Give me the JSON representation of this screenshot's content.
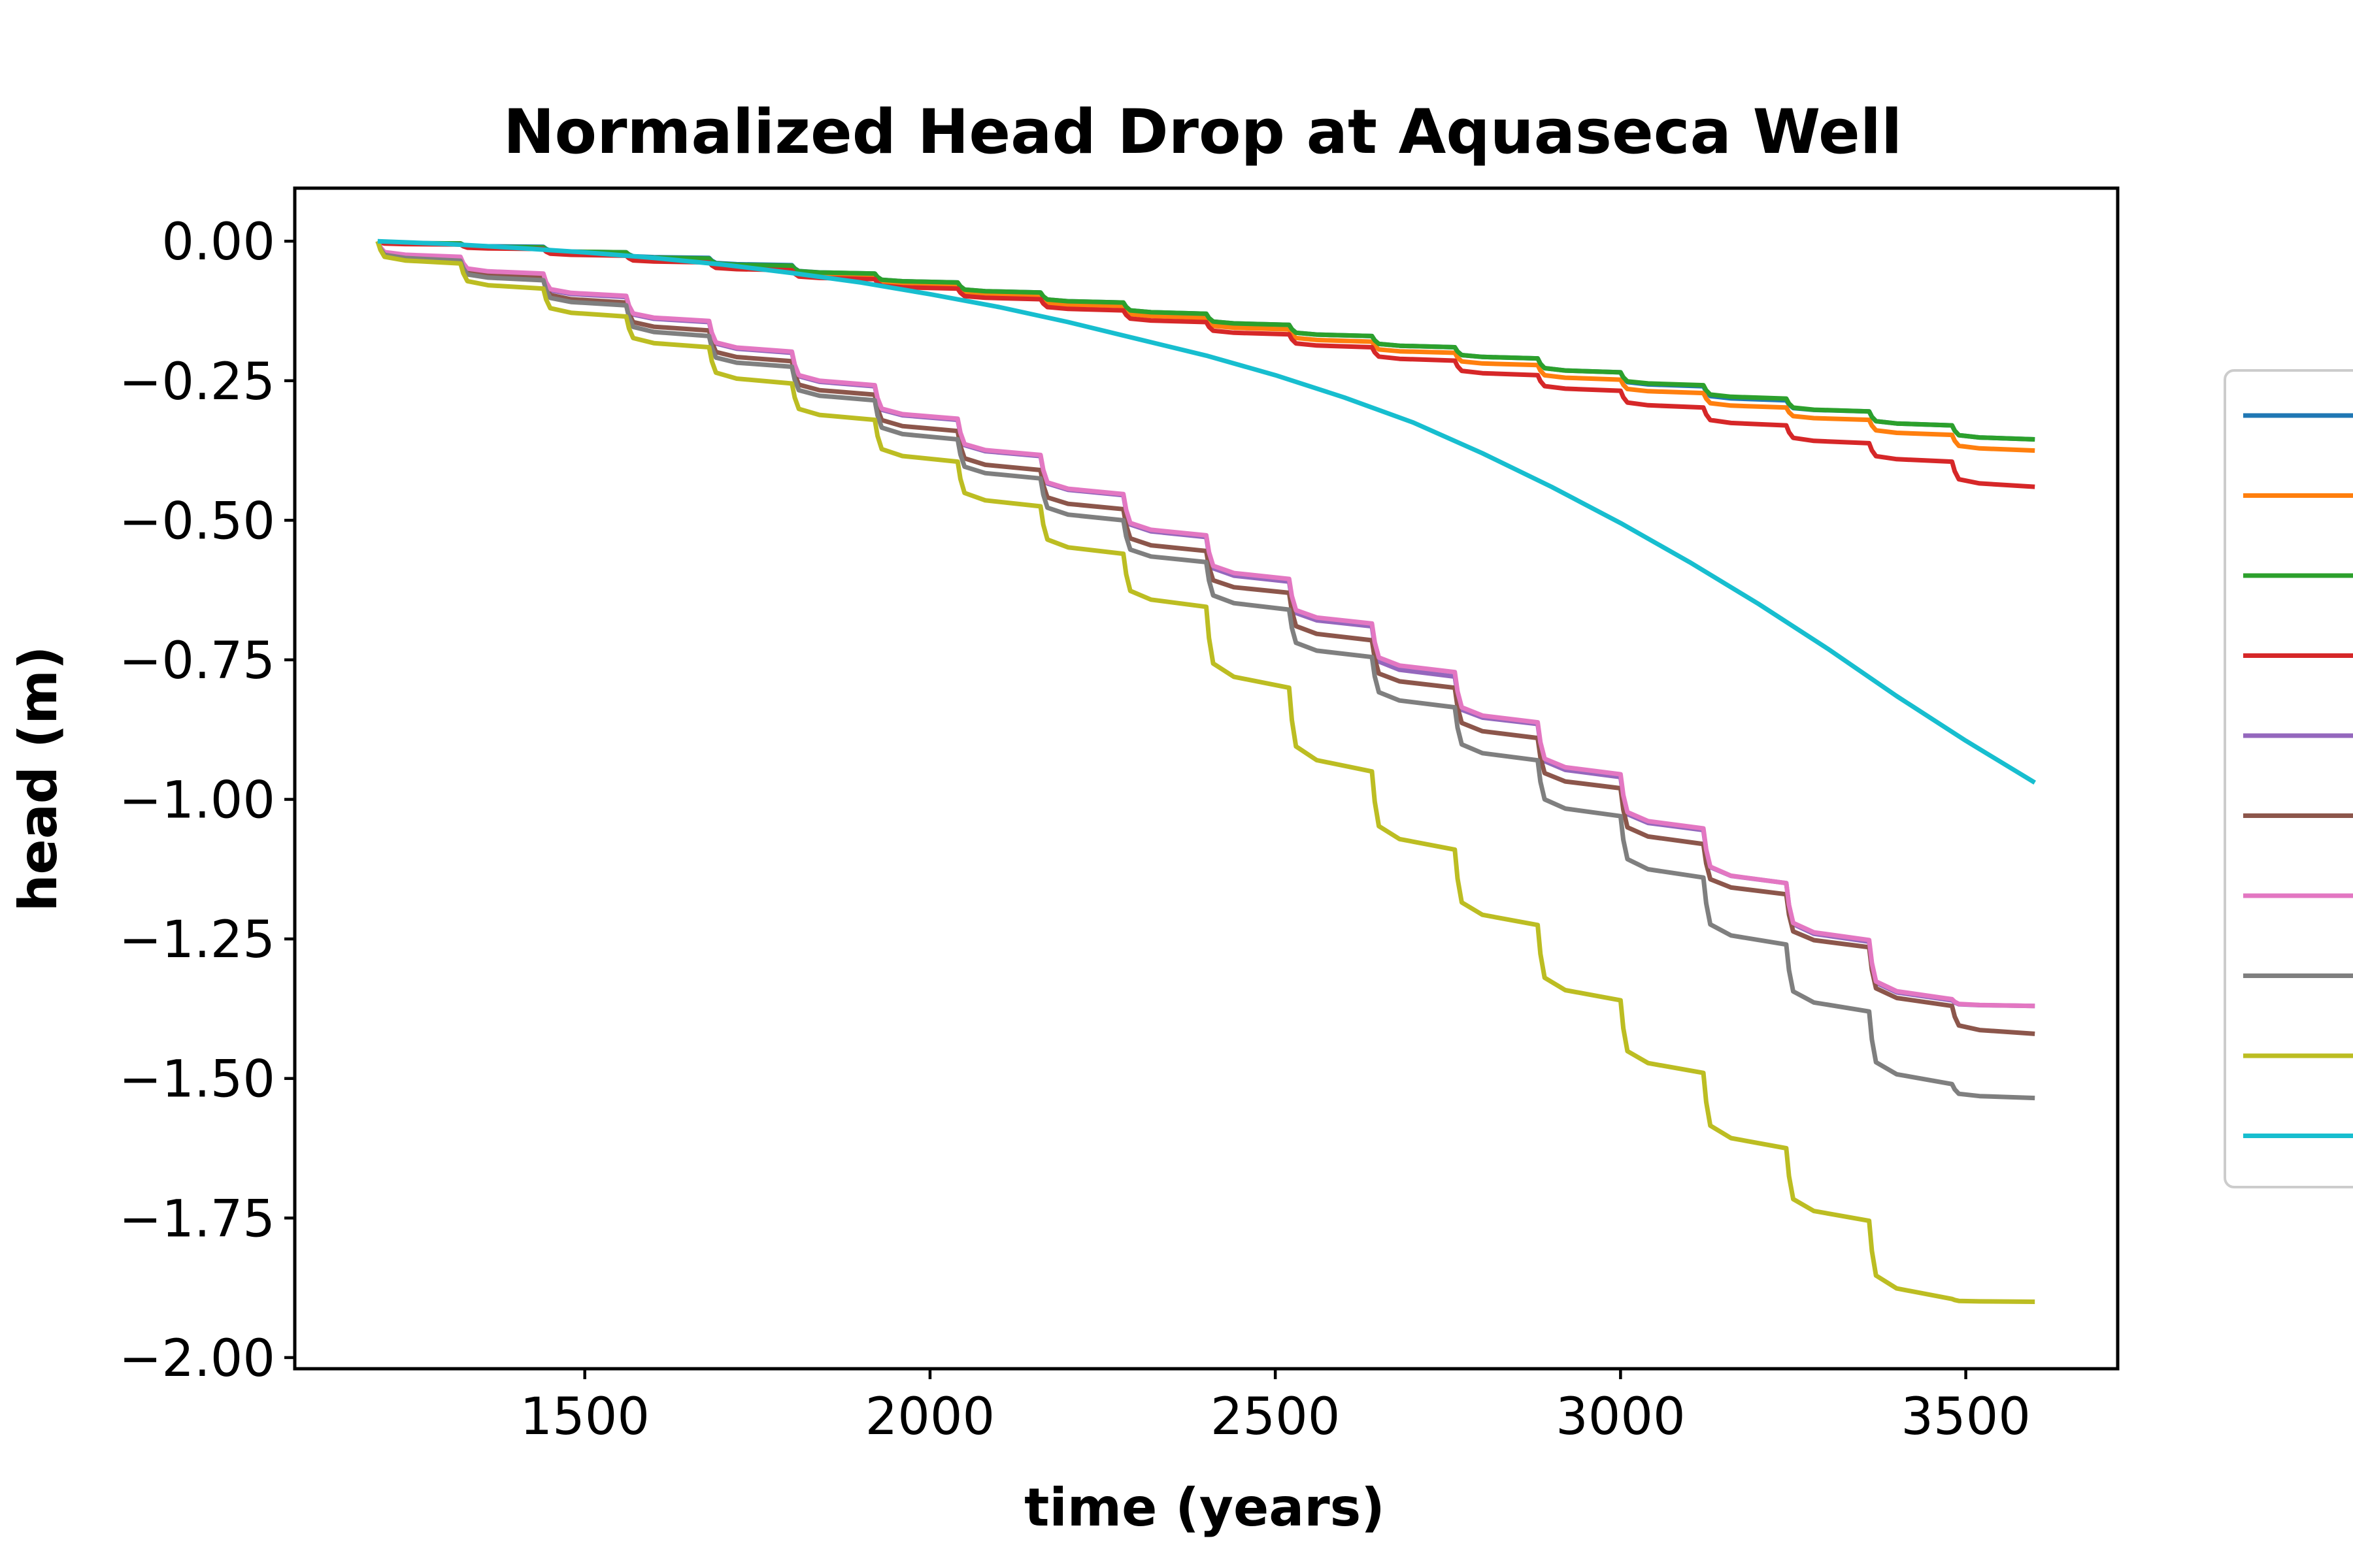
{
  "chart_data": {
    "type": "line",
    "title": "Normalized Head Drop at Aquaseca Well",
    "xlabel": "time (years)",
    "ylabel": "head (m)",
    "xlim": [
      1080,
      3720
    ],
    "ylim": [
      -2.02,
      0.095
    ],
    "xticks": [
      1500,
      2000,
      2500,
      3000,
      3500
    ],
    "yticks": [
      0.0,
      -0.25,
      -0.5,
      -0.75,
      -1.0,
      -1.25,
      -1.5,
      -1.75,
      -2.0
    ],
    "ytick_labels": [
      "0.00",
      "−0.25",
      "−0.50",
      "−0.75",
      "−1.00",
      "−1.25",
      "−1.50",
      "−1.75",
      "−2.00"
    ],
    "xtick_labels": [
      "1500",
      "2000",
      "2500",
      "3000",
      "3500"
    ],
    "legend_position": "right, outside plot (clipped)",
    "series": [
      {
        "color": "#1f77b4",
        "x": [
          1200,
          1320,
          1440,
          1560,
          1680,
          1800,
          1920,
          2040,
          2160,
          2280,
          2400,
          2520,
          2640,
          2760,
          2880,
          3000,
          3120,
          3240,
          3360,
          3480,
          3600
        ],
        "values": [
          0,
          -0.004,
          -0.01,
          -0.02,
          -0.03,
          -0.043,
          -0.058,
          -0.074,
          -0.092,
          -0.11,
          -0.13,
          -0.15,
          -0.17,
          -0.19,
          -0.21,
          -0.235,
          -0.26,
          -0.285,
          -0.305,
          -0.33,
          -0.355
        ]
      },
      {
        "color": "#ff7f0e",
        "x": [
          1200,
          1320,
          1440,
          1560,
          1680,
          1800,
          1920,
          2040,
          2160,
          2280,
          2400,
          2520,
          2640,
          2760,
          2880,
          3000,
          3120,
          3240,
          3360,
          3480,
          3600
        ],
        "values": [
          0,
          -0.005,
          -0.012,
          -0.022,
          -0.033,
          -0.047,
          -0.062,
          -0.079,
          -0.097,
          -0.116,
          -0.137,
          -0.158,
          -0.18,
          -0.2,
          -0.222,
          -0.248,
          -0.272,
          -0.298,
          -0.32,
          -0.347,
          -0.375
        ]
      },
      {
        "color": "#2ca02c",
        "x": [
          1200,
          1320,
          1440,
          1560,
          1680,
          1800,
          1920,
          2040,
          2160,
          2280,
          2400,
          2520,
          2640,
          2760,
          2880,
          3000,
          3120,
          3240,
          3360,
          3480,
          3600
        ],
        "values": [
          0,
          -0.004,
          -0.011,
          -0.02,
          -0.031,
          -0.044,
          -0.058,
          -0.074,
          -0.092,
          -0.11,
          -0.13,
          -0.15,
          -0.17,
          -0.19,
          -0.21,
          -0.235,
          -0.258,
          -0.282,
          -0.305,
          -0.33,
          -0.355
        ]
      },
      {
        "color": "#d62728",
        "x": [
          1200,
          1320,
          1440,
          1560,
          1680,
          1800,
          1920,
          2040,
          2160,
          2280,
          2400,
          2520,
          2640,
          2760,
          2880,
          3000,
          3120,
          3240,
          3360,
          3480,
          3600
        ],
        "values": [
          0,
          -0.006,
          -0.014,
          -0.026,
          -0.038,
          -0.052,
          -0.068,
          -0.085,
          -0.104,
          -0.124,
          -0.145,
          -0.167,
          -0.19,
          -0.214,
          -0.24,
          -0.268,
          -0.298,
          -0.33,
          -0.362,
          -0.395,
          -0.44
        ]
      },
      {
        "color": "#9467bd",
        "x": [
          1200,
          1320,
          1440,
          1560,
          1680,
          1800,
          1920,
          2040,
          2160,
          2280,
          2400,
          2520,
          2640,
          2760,
          2880,
          3000,
          3120,
          3240,
          3360,
          3480,
          3600
        ],
        "values": [
          0,
          -0.03,
          -0.06,
          -0.1,
          -0.145,
          -0.2,
          -0.26,
          -0.32,
          -0.385,
          -0.455,
          -0.53,
          -0.61,
          -0.69,
          -0.78,
          -0.865,
          -0.96,
          -1.055,
          -1.15,
          -1.255,
          -1.36,
          -1.37
        ]
      },
      {
        "color": "#8c564b",
        "x": [
          1200,
          1320,
          1440,
          1560,
          1680,
          1800,
          1920,
          2040,
          2160,
          2280,
          2400,
          2520,
          2640,
          2760,
          2880,
          3000,
          3120,
          3240,
          3360,
          3480,
          3600
        ],
        "values": [
          0,
          -0.033,
          -0.065,
          -0.11,
          -0.16,
          -0.215,
          -0.275,
          -0.34,
          -0.41,
          -0.48,
          -0.555,
          -0.63,
          -0.715,
          -0.8,
          -0.89,
          -0.98,
          -1.08,
          -1.17,
          -1.265,
          -1.37,
          -1.42
        ]
      },
      {
        "color": "#e377c2",
        "x": [
          1200,
          1320,
          1440,
          1560,
          1680,
          1800,
          1920,
          2040,
          2160,
          2280,
          2400,
          2520,
          2640,
          2760,
          2880,
          3000,
          3120,
          3240,
          3360,
          3480,
          3600
        ],
        "values": [
          0,
          -0.028,
          -0.058,
          -0.098,
          -0.143,
          -0.198,
          -0.258,
          -0.318,
          -0.383,
          -0.453,
          -0.527,
          -0.605,
          -0.685,
          -0.772,
          -0.862,
          -0.955,
          -1.052,
          -1.15,
          -1.252,
          -1.358,
          -1.37
        ]
      },
      {
        "color": "#7f7f7f",
        "x": [
          1200,
          1320,
          1440,
          1560,
          1680,
          1800,
          1920,
          2040,
          2160,
          2280,
          2400,
          2520,
          2640,
          2760,
          2880,
          3000,
          3120,
          3240,
          3360,
          3480,
          3600
        ],
        "values": [
          0,
          -0.035,
          -0.07,
          -0.115,
          -0.17,
          -0.225,
          -0.285,
          -0.355,
          -0.425,
          -0.5,
          -0.575,
          -0.66,
          -0.745,
          -0.835,
          -0.93,
          -1.03,
          -1.14,
          -1.26,
          -1.38,
          -1.51,
          -1.535
        ]
      },
      {
        "color": "#bcbd22",
        "x": [
          1200,
          1320,
          1440,
          1560,
          1680,
          1800,
          1920,
          2040,
          2160,
          2280,
          2400,
          2520,
          2640,
          2760,
          2880,
          3000,
          3120,
          3240,
          3360,
          3480,
          3600
        ],
        "values": [
          0,
          -0.04,
          -0.085,
          -0.135,
          -0.19,
          -0.255,
          -0.32,
          -0.395,
          -0.475,
          -0.56,
          -0.655,
          -0.8,
          -0.95,
          -1.09,
          -1.225,
          -1.36,
          -1.49,
          -1.625,
          -1.755,
          -1.895,
          -1.9
        ]
      },
      {
        "color": "#17becf",
        "x": [
          1200,
          1300,
          1400,
          1500,
          1600,
          1700,
          1800,
          1900,
          2000,
          2100,
          2200,
          2300,
          2400,
          2500,
          2600,
          2700,
          2800,
          2900,
          3000,
          3100,
          3200,
          3300,
          3400,
          3500,
          3600
        ],
        "values": [
          0,
          -0.005,
          -0.012,
          -0.02,
          -0.03,
          -0.042,
          -0.057,
          -0.074,
          -0.095,
          -0.118,
          -0.145,
          -0.175,
          -0.205,
          -0.24,
          -0.28,
          -0.325,
          -0.38,
          -0.44,
          -0.505,
          -0.575,
          -0.65,
          -0.73,
          -0.815,
          -0.895,
          -0.97
        ]
      }
    ]
  }
}
